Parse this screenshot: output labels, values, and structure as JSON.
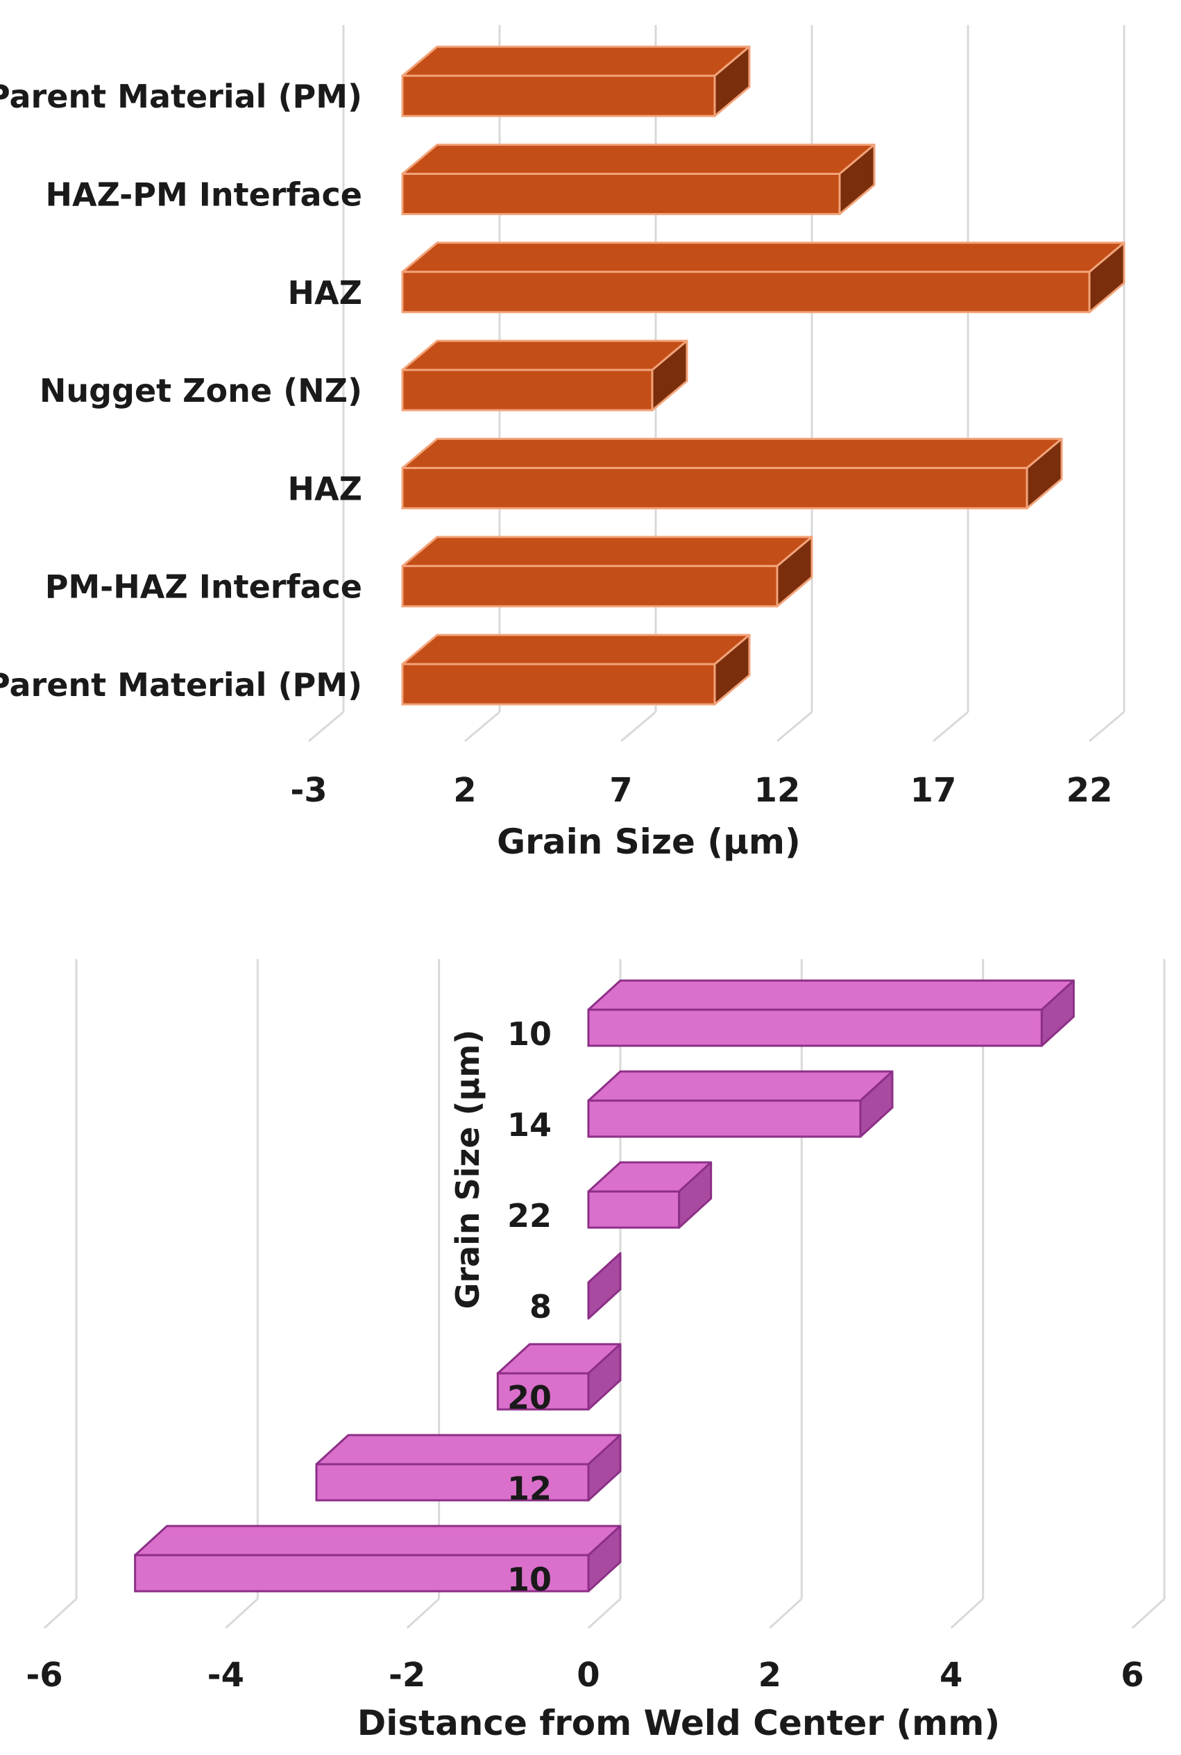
{
  "chart_data": [
    {
      "type": "bar",
      "orientation": "horizontal",
      "style": "3d",
      "categories": [
        "Parent Material (PM)",
        "PM-HAZ Interface",
        "HAZ",
        "Nugget Zone (NZ)",
        "HAZ",
        "HAZ-PM Interface",
        "Parent Material (PM)"
      ],
      "values": [
        10,
        12,
        20,
        8,
        22,
        14,
        10
      ],
      "xlabel": "Grain Size (μm)",
      "ylabel": "",
      "xlim": [
        -3,
        22
      ],
      "xticks": [
        -3,
        2,
        7,
        12,
        17,
        22
      ],
      "grid": "vertical",
      "color": "#c44e17",
      "edge_color": "#f2a37a",
      "side_color": "#7a2e0b"
    },
    {
      "type": "bar",
      "orientation": "horizontal",
      "style": "3d",
      "values": [
        -5,
        -3,
        -1,
        0,
        1,
        3,
        5
      ],
      "category_labels": [
        "10",
        "12",
        "20",
        "8",
        "22",
        "14",
        "10"
      ],
      "xlabel": "Distance from Weld Center (mm)",
      "ylabel": "Grain Size (μm)",
      "xlim": [
        -6,
        6
      ],
      "xticks": [
        -6,
        -4,
        -2,
        0,
        2,
        4,
        6
      ],
      "grid": "vertical",
      "color": "#db6fcc",
      "edge_color": "#8c2f86",
      "side_color": "#a84aa0"
    }
  ]
}
